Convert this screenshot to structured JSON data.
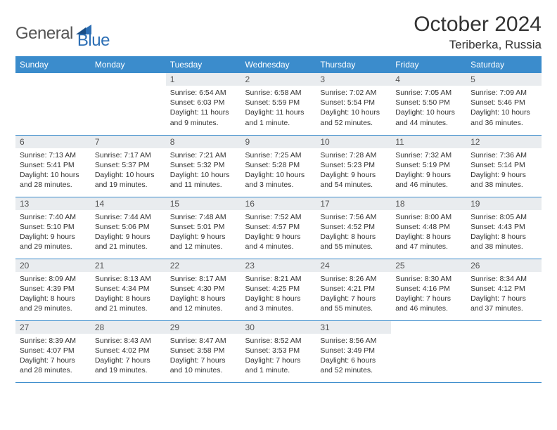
{
  "brand": {
    "word1": "General",
    "word2": "Blue"
  },
  "title": "October 2024",
  "location": "Teriberka, Russia",
  "colors": {
    "header_bg": "#3b8ccc",
    "header_text": "#ffffff",
    "daynum_bg": "#e9ecef",
    "border": "#3b8ccc",
    "brand_blue": "#2d6fb5",
    "text": "#333333"
  },
  "weekdays": [
    "Sunday",
    "Monday",
    "Tuesday",
    "Wednesday",
    "Thursday",
    "Friday",
    "Saturday"
  ],
  "weeks": [
    [
      {
        "n": "",
        "sr": "",
        "ss": "",
        "dl": ""
      },
      {
        "n": "",
        "sr": "",
        "ss": "",
        "dl": ""
      },
      {
        "n": "1",
        "sr": "Sunrise: 6:54 AM",
        "ss": "Sunset: 6:03 PM",
        "dl": "Daylight: 11 hours and 9 minutes."
      },
      {
        "n": "2",
        "sr": "Sunrise: 6:58 AM",
        "ss": "Sunset: 5:59 PM",
        "dl": "Daylight: 11 hours and 1 minute."
      },
      {
        "n": "3",
        "sr": "Sunrise: 7:02 AM",
        "ss": "Sunset: 5:54 PM",
        "dl": "Daylight: 10 hours and 52 minutes."
      },
      {
        "n": "4",
        "sr": "Sunrise: 7:05 AM",
        "ss": "Sunset: 5:50 PM",
        "dl": "Daylight: 10 hours and 44 minutes."
      },
      {
        "n": "5",
        "sr": "Sunrise: 7:09 AM",
        "ss": "Sunset: 5:46 PM",
        "dl": "Daylight: 10 hours and 36 minutes."
      }
    ],
    [
      {
        "n": "6",
        "sr": "Sunrise: 7:13 AM",
        "ss": "Sunset: 5:41 PM",
        "dl": "Daylight: 10 hours and 28 minutes."
      },
      {
        "n": "7",
        "sr": "Sunrise: 7:17 AM",
        "ss": "Sunset: 5:37 PM",
        "dl": "Daylight: 10 hours and 19 minutes."
      },
      {
        "n": "8",
        "sr": "Sunrise: 7:21 AM",
        "ss": "Sunset: 5:32 PM",
        "dl": "Daylight: 10 hours and 11 minutes."
      },
      {
        "n": "9",
        "sr": "Sunrise: 7:25 AM",
        "ss": "Sunset: 5:28 PM",
        "dl": "Daylight: 10 hours and 3 minutes."
      },
      {
        "n": "10",
        "sr": "Sunrise: 7:28 AM",
        "ss": "Sunset: 5:23 PM",
        "dl": "Daylight: 9 hours and 54 minutes."
      },
      {
        "n": "11",
        "sr": "Sunrise: 7:32 AM",
        "ss": "Sunset: 5:19 PM",
        "dl": "Daylight: 9 hours and 46 minutes."
      },
      {
        "n": "12",
        "sr": "Sunrise: 7:36 AM",
        "ss": "Sunset: 5:14 PM",
        "dl": "Daylight: 9 hours and 38 minutes."
      }
    ],
    [
      {
        "n": "13",
        "sr": "Sunrise: 7:40 AM",
        "ss": "Sunset: 5:10 PM",
        "dl": "Daylight: 9 hours and 29 minutes."
      },
      {
        "n": "14",
        "sr": "Sunrise: 7:44 AM",
        "ss": "Sunset: 5:06 PM",
        "dl": "Daylight: 9 hours and 21 minutes."
      },
      {
        "n": "15",
        "sr": "Sunrise: 7:48 AM",
        "ss": "Sunset: 5:01 PM",
        "dl": "Daylight: 9 hours and 12 minutes."
      },
      {
        "n": "16",
        "sr": "Sunrise: 7:52 AM",
        "ss": "Sunset: 4:57 PM",
        "dl": "Daylight: 9 hours and 4 minutes."
      },
      {
        "n": "17",
        "sr": "Sunrise: 7:56 AM",
        "ss": "Sunset: 4:52 PM",
        "dl": "Daylight: 8 hours and 55 minutes."
      },
      {
        "n": "18",
        "sr": "Sunrise: 8:00 AM",
        "ss": "Sunset: 4:48 PM",
        "dl": "Daylight: 8 hours and 47 minutes."
      },
      {
        "n": "19",
        "sr": "Sunrise: 8:05 AM",
        "ss": "Sunset: 4:43 PM",
        "dl": "Daylight: 8 hours and 38 minutes."
      }
    ],
    [
      {
        "n": "20",
        "sr": "Sunrise: 8:09 AM",
        "ss": "Sunset: 4:39 PM",
        "dl": "Daylight: 8 hours and 29 minutes."
      },
      {
        "n": "21",
        "sr": "Sunrise: 8:13 AM",
        "ss": "Sunset: 4:34 PM",
        "dl": "Daylight: 8 hours and 21 minutes."
      },
      {
        "n": "22",
        "sr": "Sunrise: 8:17 AM",
        "ss": "Sunset: 4:30 PM",
        "dl": "Daylight: 8 hours and 12 minutes."
      },
      {
        "n": "23",
        "sr": "Sunrise: 8:21 AM",
        "ss": "Sunset: 4:25 PM",
        "dl": "Daylight: 8 hours and 3 minutes."
      },
      {
        "n": "24",
        "sr": "Sunrise: 8:26 AM",
        "ss": "Sunset: 4:21 PM",
        "dl": "Daylight: 7 hours and 55 minutes."
      },
      {
        "n": "25",
        "sr": "Sunrise: 8:30 AM",
        "ss": "Sunset: 4:16 PM",
        "dl": "Daylight: 7 hours and 46 minutes."
      },
      {
        "n": "26",
        "sr": "Sunrise: 8:34 AM",
        "ss": "Sunset: 4:12 PM",
        "dl": "Daylight: 7 hours and 37 minutes."
      }
    ],
    [
      {
        "n": "27",
        "sr": "Sunrise: 8:39 AM",
        "ss": "Sunset: 4:07 PM",
        "dl": "Daylight: 7 hours and 28 minutes."
      },
      {
        "n": "28",
        "sr": "Sunrise: 8:43 AM",
        "ss": "Sunset: 4:02 PM",
        "dl": "Daylight: 7 hours and 19 minutes."
      },
      {
        "n": "29",
        "sr": "Sunrise: 8:47 AM",
        "ss": "Sunset: 3:58 PM",
        "dl": "Daylight: 7 hours and 10 minutes."
      },
      {
        "n": "30",
        "sr": "Sunrise: 8:52 AM",
        "ss": "Sunset: 3:53 PM",
        "dl": "Daylight: 7 hours and 1 minute."
      },
      {
        "n": "31",
        "sr": "Sunrise: 8:56 AM",
        "ss": "Sunset: 3:49 PM",
        "dl": "Daylight: 6 hours and 52 minutes."
      },
      {
        "n": "",
        "sr": "",
        "ss": "",
        "dl": ""
      },
      {
        "n": "",
        "sr": "",
        "ss": "",
        "dl": ""
      }
    ]
  ]
}
